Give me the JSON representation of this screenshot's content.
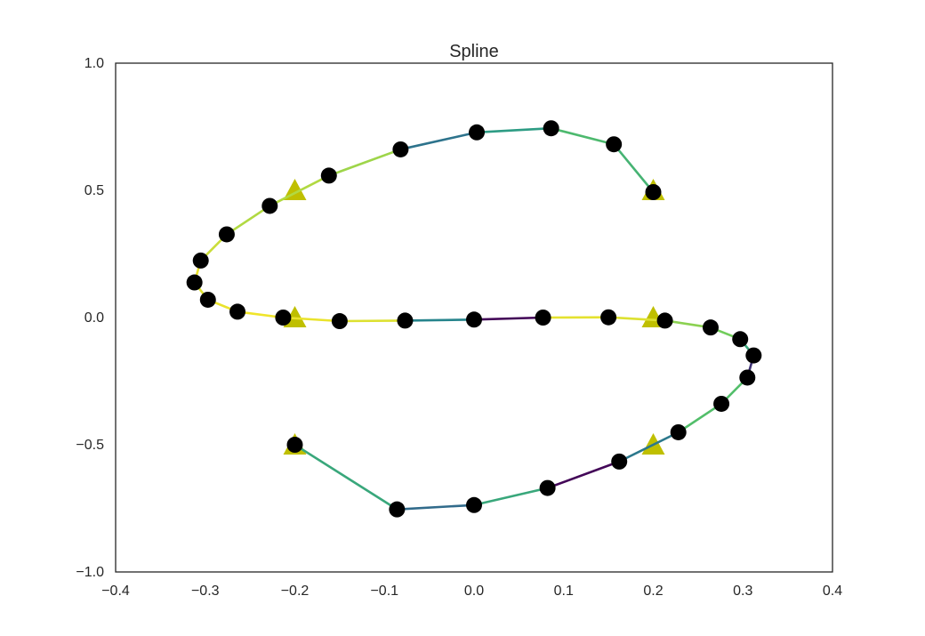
{
  "chart_data": {
    "type": "line",
    "title": "Spline",
    "xlabel": "",
    "ylabel": "",
    "xlim": [
      -0.4,
      0.4
    ],
    "ylim": [
      -1.0,
      1.0
    ],
    "x_ticks": [
      "−0.4",
      "−0.3",
      "−0.2",
      "−0.1",
      "0.0",
      "0.1",
      "0.2",
      "0.3",
      "0.4"
    ],
    "y_ticks": [
      "−1.0",
      "−0.5",
      "0.0",
      "0.5",
      "1.0"
    ],
    "grid": false,
    "legend": "none",
    "series": [
      {
        "kind": "control_points",
        "marker": "triangle",
        "color": "#bfbf00",
        "x": [
          -0.2,
          0.2,
          0.2,
          -0.2,
          -0.2,
          0.2
        ],
        "y": [
          -0.5,
          -0.5,
          0.0,
          0.0,
          0.5,
          0.5
        ]
      },
      {
        "kind": "spline_samples",
        "marker": "circle",
        "color": "#000000",
        "line_colormap": "viridis",
        "x": [
          -0.2,
          -0.086,
          0.0,
          0.082,
          0.162,
          0.228,
          0.276,
          0.305,
          0.312,
          0.297,
          0.264,
          0.213,
          0.15,
          0.077,
          0.0,
          -0.077,
          -0.15,
          -0.213,
          -0.264,
          -0.297,
          -0.312,
          -0.305,
          -0.276,
          -0.228,
          -0.162,
          -0.082,
          0.003,
          0.086,
          0.156,
          0.2
        ],
        "y": [
          -0.5,
          -0.754,
          -0.737,
          -0.67,
          -0.566,
          -0.451,
          -0.339,
          -0.236,
          -0.149,
          -0.085,
          -0.039,
          -0.012,
          0.001,
          0.0,
          -0.008,
          -0.012,
          -0.014,
          0.0,
          0.023,
          0.07,
          0.138,
          0.224,
          0.327,
          0.439,
          0.558,
          0.661,
          0.728,
          0.744,
          0.681,
          0.493
        ],
        "segment_values": [
          0.6,
          0.35,
          0.6,
          0.02,
          0.4,
          0.7,
          0.7,
          0.15,
          0.6,
          0.78,
          0.82,
          0.95,
          0.96,
          0.02,
          0.45,
          0.95,
          0.97,
          0.98,
          0.97,
          0.95,
          0.97,
          0.92,
          0.88,
          0.88,
          0.85,
          0.38,
          0.55,
          0.68,
          0.65
        ]
      }
    ]
  }
}
